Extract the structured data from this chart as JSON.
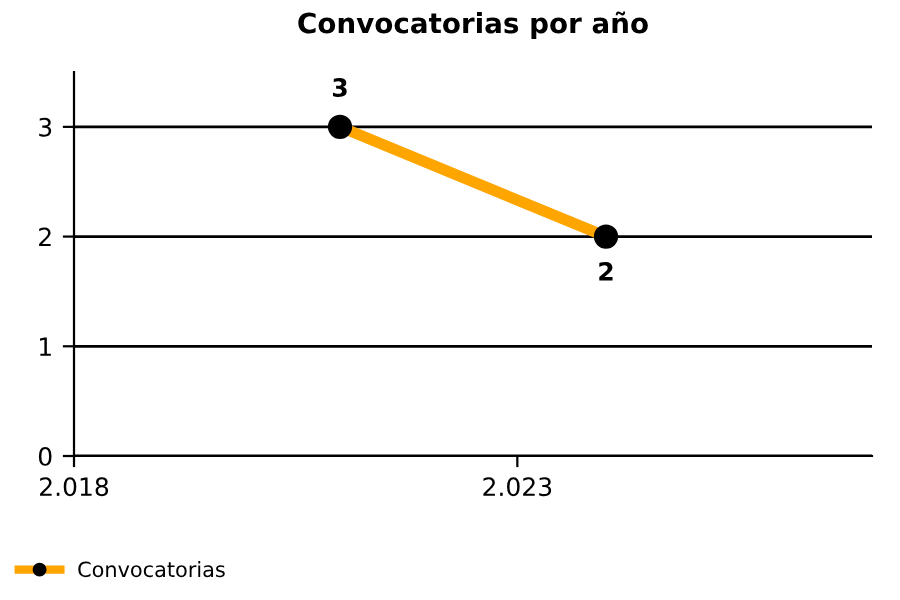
{
  "chart_data": {
    "type": "line",
    "title": "Convocatorias por año",
    "x": [
      2021,
      2024
    ],
    "series": [
      {
        "name": "Convocatorias",
        "color": "#ffa500",
        "colors": [
          "#000000",
          "#000000"
        ],
        "values": [
          3,
          2
        ]
      }
    ],
    "xlim": [
      2018,
      2027
    ],
    "xticks": [
      {
        "value": 2018,
        "label": "2.018"
      },
      {
        "value": 2023,
        "label": "2.023"
      }
    ],
    "ylim": [
      0,
      3.5
    ],
    "yticks": [
      0,
      1,
      2,
      3
    ],
    "grid": "y",
    "legend": "bottom left",
    "marker": "circle",
    "line_style": "solid",
    "data_labels": true
  }
}
